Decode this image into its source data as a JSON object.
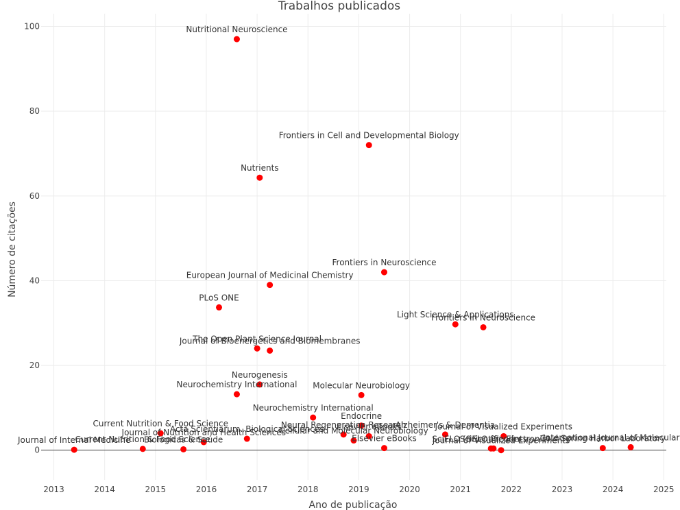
{
  "chart_data": {
    "type": "scatter",
    "title": "Trabalhos publicados",
    "xlabel": "Ano de publicação",
    "ylabel": "Número de citações",
    "xlim": [
      2012.75,
      2025.05
    ],
    "ylim": [
      -7,
      103
    ],
    "xticks": [
      2013,
      2014,
      2015,
      2016,
      2017,
      2018,
      2019,
      2020,
      2021,
      2022,
      2023,
      2024,
      2025
    ],
    "yticks": [
      0,
      20,
      40,
      60,
      80,
      100
    ],
    "grid": true,
    "points": [
      {
        "x": 2016.6,
        "y": 97,
        "label": "Nutritional Neuroscience"
      },
      {
        "x": 2019.2,
        "y": 72,
        "label": "Frontiers in Cell and Developmental Biology"
      },
      {
        "x": 2017.05,
        "y": 64.3,
        "label": "Nutrients"
      },
      {
        "x": 2019.5,
        "y": 42,
        "label": "Frontiers in Neuroscience"
      },
      {
        "x": 2017.25,
        "y": 39,
        "label": "European Journal of Medicinal Chemistry"
      },
      {
        "x": 2016.25,
        "y": 33.7,
        "label": "PLoS ONE"
      },
      {
        "x": 2020.9,
        "y": 29.7,
        "label": "Light Science & Applications"
      },
      {
        "x": 2021.45,
        "y": 29,
        "label": "Frontiers in Neuroscience"
      },
      {
        "x": 2017.0,
        "y": 24,
        "label": "The Open Plant Science Journal"
      },
      {
        "x": 2017.25,
        "y": 23.5,
        "label": "Journal of Bioenergetics and Biomembranes"
      },
      {
        "x": 2017.05,
        "y": 15.5,
        "label": "Neurogenesis"
      },
      {
        "x": 2016.6,
        "y": 13.2,
        "label": "Neurochemistry International"
      },
      {
        "x": 2019.05,
        "y": 13,
        "label": "Molecular Neurobiology"
      },
      {
        "x": 2018.1,
        "y": 7.7,
        "label": "Neurochemistry International"
      },
      {
        "x": 2019.05,
        "y": 5.8,
        "label": "Endocrine"
      },
      {
        "x": 2020.7,
        "y": 3.7,
        "label": "Alzheimer's & Dementia"
      },
      {
        "x": 2021.85,
        "y": 3.3,
        "label": "Journal of Visualized Experiments"
      },
      {
        "x": 2015.1,
        "y": 4,
        "label": "Current Nutrition & Food Science"
      },
      {
        "x": 2018.7,
        "y": 3.7,
        "label": "Neural Regeneration Research"
      },
      {
        "x": 2019.2,
        "y": 3.3,
        "label": "Elsevier eBooks"
      },
      {
        "x": 2016.8,
        "y": 2.7,
        "label": "Acta Scientiarum. Biological Sciences"
      },
      {
        "x": 2018.9,
        "y": 2.3,
        "label": "Cellular and Molecular Neurobiology"
      },
      {
        "x": 2015.95,
        "y": 1.9,
        "label": "Journal of Nutrition and Health Sciences"
      },
      {
        "x": 2013.4,
        "y": 0.1,
        "label": "Journal of Internal Medicine"
      },
      {
        "x": 2014.75,
        "y": 0.3,
        "label": "Current Nutrition & Food Science"
      },
      {
        "x": 2015.55,
        "y": 0.2,
        "label": "Biológicas & Saúde"
      },
      {
        "x": 2019.5,
        "y": 0.5,
        "label": "Elsevier eBooks"
      },
      {
        "x": 2021.6,
        "y": 0.4,
        "label": "SciELO (Scientific Electronic)"
      },
      {
        "x": 2021.65,
        "y": 0.4,
        "label": "SciELO Preprints"
      },
      {
        "x": 2021.8,
        "y": 0.0,
        "label": "Journal of Visualized Experiments"
      },
      {
        "x": 2023.8,
        "y": 0.5,
        "label": "Cold Spring Harbor Laboratory"
      },
      {
        "x": 2024.35,
        "y": 0.7,
        "label": "International Journal of Molecular Sciences"
      }
    ]
  }
}
